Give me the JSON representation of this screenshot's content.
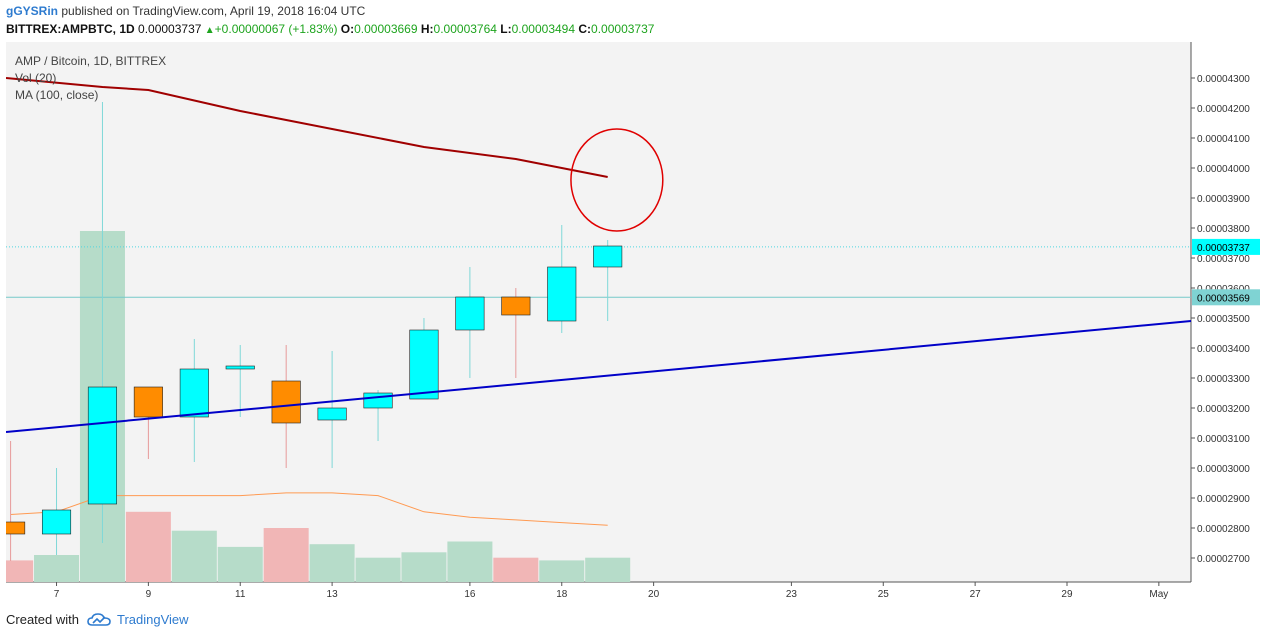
{
  "header": {
    "author": "gGYSRin",
    "published": "published on TradingView.com, April 19, 2018 16:04 UTC",
    "symbol": "BITTREX:AMPBTC, 1D",
    "last": "0.00003737",
    "change": "+0.00000067 (+1.83%)",
    "o_label": "O:",
    "o_value": "0.00003669",
    "h_label": "H:",
    "h_value": "0.00003764",
    "l_label": "L:",
    "l_value": "0.00003494",
    "c_label": "C:",
    "c_value": "0.00003737"
  },
  "legend": {
    "pair": "AMP / Bitcoin, 1D, BITTREX",
    "vol": "Vol (20)",
    "ma": "MA (100, close)"
  },
  "footer": {
    "created": "Created with",
    "brand": "TradingView"
  },
  "colors": {
    "up": "#00ffff",
    "down": "#ff8c00",
    "ma": "#a00000",
    "trend": "#0000c8",
    "circle": "#e00000",
    "vol_up": "#b6dcc9",
    "vol_down": "#f1b6b6",
    "vol_ma": "#ff9a52",
    "plot_bg": "#f3f3f3",
    "price_line": "#4fd6e0",
    "ref_line": "#76c9c9"
  },
  "chart_data": {
    "type": "candlestick",
    "title": "AMP / Bitcoin, 1D, BITTREX",
    "y_range": [
      2.62e-05,
      4.42e-05
    ],
    "y_ticks": [
      "0.00002700",
      "0.00002800",
      "0.00002900",
      "0.00003000",
      "0.00003100",
      "0.00003200",
      "0.00003300",
      "0.00003400",
      "0.00003500",
      "0.00003600",
      "0.00003700",
      "0.00003800",
      "0.00003900",
      "0.00004000",
      "0.00004100",
      "0.00004200",
      "0.00004300"
    ],
    "x_range": [
      5.9,
      31.7
    ],
    "x_ticks": [
      {
        "day": 7,
        "label": "7"
      },
      {
        "day": 9,
        "label": "9"
      },
      {
        "day": 11,
        "label": "11"
      },
      {
        "day": 13,
        "label": "13"
      },
      {
        "day": 16,
        "label": "16"
      },
      {
        "day": 18,
        "label": "18"
      },
      {
        "day": 20,
        "label": "20"
      },
      {
        "day": 23,
        "label": "23"
      },
      {
        "day": 25,
        "label": "25"
      },
      {
        "day": 27,
        "label": "27"
      },
      {
        "day": 29,
        "label": "29"
      },
      {
        "day": 31,
        "label": "May"
      }
    ],
    "candles": [
      {
        "day": 6,
        "o": 2.82e-05,
        "h": 3.09e-05,
        "l": 2.69e-05,
        "c": 2.78e-05
      },
      {
        "day": 7,
        "o": 2.78e-05,
        "h": 3e-05,
        "l": 2.71e-05,
        "c": 2.86e-05
      },
      {
        "day": 8,
        "o": 2.88e-05,
        "h": 4.22e-05,
        "l": 2.75e-05,
        "c": 3.27e-05
      },
      {
        "day": 9,
        "o": 3.27e-05,
        "h": 3.27e-05,
        "l": 3.03e-05,
        "c": 3.17e-05
      },
      {
        "day": 10,
        "o": 3.17e-05,
        "h": 3.43e-05,
        "l": 3.02e-05,
        "c": 3.33e-05
      },
      {
        "day": 11,
        "o": 3.33e-05,
        "h": 3.41e-05,
        "l": 3.17e-05,
        "c": 3.34e-05
      },
      {
        "day": 12,
        "o": 3.29e-05,
        "h": 3.41e-05,
        "l": 3e-05,
        "c": 3.15e-05
      },
      {
        "day": 13,
        "o": 3.16e-05,
        "h": 3.39e-05,
        "l": 3e-05,
        "c": 3.2e-05
      },
      {
        "day": 14,
        "o": 3.2e-05,
        "h": 3.26e-05,
        "l": 3.09e-05,
        "c": 3.25e-05
      },
      {
        "day": 15,
        "o": 3.23e-05,
        "h": 3.5e-05,
        "l": 3.23e-05,
        "c": 3.46e-05
      },
      {
        "day": 16,
        "o": 3.46e-05,
        "h": 3.67e-05,
        "l": 3.3e-05,
        "c": 3.57e-05
      },
      {
        "day": 17,
        "o": 3.57e-05,
        "h": 3.6e-05,
        "l": 3.3e-05,
        "c": 3.51e-05
      },
      {
        "day": 18,
        "o": 3.49e-05,
        "h": 3.81e-05,
        "l": 3.45e-05,
        "c": 3.67e-05
      },
      {
        "day": 19,
        "o": 3.67e-05,
        "h": 3.76e-05,
        "l": 3.49e-05,
        "c": 3.74e-05
      }
    ],
    "volume": [
      {
        "day": 6,
        "v": 8,
        "dir": "down"
      },
      {
        "day": 7,
        "v": 10,
        "dir": "up"
      },
      {
        "day": 8,
        "v": 130,
        "dir": "up"
      },
      {
        "day": 9,
        "v": 26,
        "dir": "down"
      },
      {
        "day": 10,
        "v": 19,
        "dir": "up"
      },
      {
        "day": 11,
        "v": 13,
        "dir": "up"
      },
      {
        "day": 12,
        "v": 20,
        "dir": "down"
      },
      {
        "day": 13,
        "v": 14,
        "dir": "up"
      },
      {
        "day": 14,
        "v": 9,
        "dir": "up"
      },
      {
        "day": 15,
        "v": 11,
        "dir": "up"
      },
      {
        "day": 16,
        "v": 15,
        "dir": "up"
      },
      {
        "day": 17,
        "v": 9,
        "dir": "down"
      },
      {
        "day": 18,
        "v": 8,
        "dir": "up"
      },
      {
        "day": 19,
        "v": 9,
        "dir": "up"
      }
    ],
    "volume_max": 150,
    "volume_ma": [
      {
        "day": 6,
        "v": 25
      },
      {
        "day": 7,
        "v": 26
      },
      {
        "day": 8,
        "v": 32
      },
      {
        "day": 9,
        "v": 32
      },
      {
        "day": 10,
        "v": 32
      },
      {
        "day": 11,
        "v": 32
      },
      {
        "day": 12,
        "v": 33
      },
      {
        "day": 13,
        "v": 33
      },
      {
        "day": 14,
        "v": 32
      },
      {
        "day": 15,
        "v": 26
      },
      {
        "day": 16,
        "v": 24
      },
      {
        "day": 17,
        "v": 23
      },
      {
        "day": 18,
        "v": 22
      },
      {
        "day": 19,
        "v": 21
      }
    ],
    "ma100": [
      {
        "day": 5.9,
        "v": 4.3e-05
      },
      {
        "day": 8,
        "v": 4.27e-05
      },
      {
        "day": 9,
        "v": 4.26e-05
      },
      {
        "day": 11,
        "v": 4.19e-05
      },
      {
        "day": 13,
        "v": 4.13e-05
      },
      {
        "day": 15,
        "v": 4.07e-05
      },
      {
        "day": 17,
        "v": 4.03e-05
      },
      {
        "day": 18,
        "v": 4e-05
      },
      {
        "day": 19,
        "v": 3.97e-05
      }
    ],
    "trendline": {
      "from": {
        "day": 5.9,
        "v": 3.12e-05
      },
      "to": {
        "day": 31.7,
        "v": 3.49e-05
      }
    },
    "annotation_circle": {
      "day": 19.2,
      "v": 3.96e-05,
      "rx_days": 1.0,
      "ry_value": 1.7e-06
    },
    "last_price": {
      "value": 3.737e-05,
      "label": "0.00003737"
    },
    "reference_price": {
      "value": 3.569e-05,
      "label": "0.00003569"
    }
  }
}
